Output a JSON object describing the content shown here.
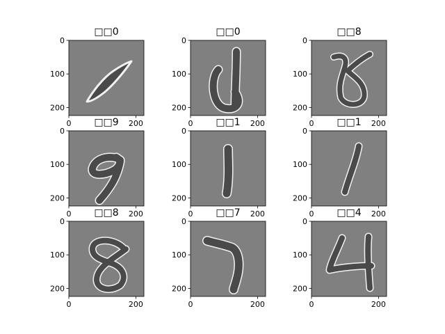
{
  "chart_data": {
    "type": "image_grid",
    "rows": 3,
    "cols": 3,
    "image_background_color": "#808080",
    "digit_fill_color": "#4a4a4a",
    "edge_highlight_color": "#f2f2f2",
    "x_ticks": [
      0,
      200
    ],
    "y_ticks": [
      0,
      100,
      200
    ],
    "extent": [
      0,
      224
    ],
    "panels": [
      {
        "title": "□□0",
        "digit": "0"
      },
      {
        "title": "□□0",
        "digit": "0"
      },
      {
        "title": "□□8",
        "digit": "8"
      },
      {
        "title": "□□9",
        "digit": "9"
      },
      {
        "title": "□□1",
        "digit": "1"
      },
      {
        "title": "□□1",
        "digit": "1"
      },
      {
        "title": "□□8",
        "digit": "8"
      },
      {
        "title": "□□7",
        "digit": "7"
      },
      {
        "title": "□□4",
        "digit": "4"
      }
    ]
  }
}
